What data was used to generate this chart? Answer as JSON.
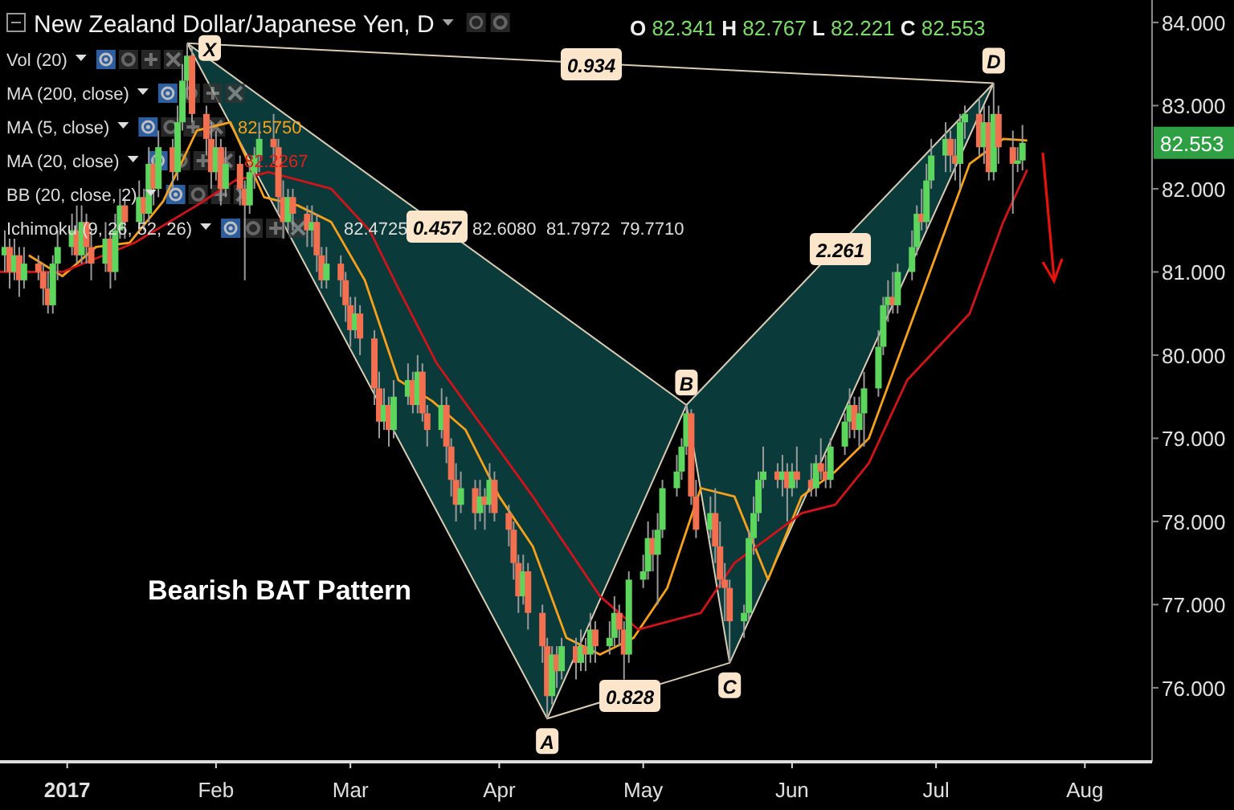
{
  "chart_data": {
    "type": "candlestick",
    "title": "New Zealand Dollar/Japanese Yen, D",
    "x": [
      "2016-12-19",
      "2016-12-20",
      "2016-12-21",
      "2016-12-22",
      "2016-12-23",
      "2016-12-26",
      "2016-12-27",
      "2016-12-28",
      "2016-12-29",
      "2016-12-30",
      "2017-01-02",
      "2017-01-03",
      "2017-01-04",
      "2017-01-05",
      "2017-01-06",
      "2017-01-09",
      "2017-01-10",
      "2017-01-11",
      "2017-01-12",
      "2017-01-13",
      "2017-01-16",
      "2017-01-17",
      "2017-01-18",
      "2017-01-19",
      "2017-01-20",
      "2017-01-23",
      "2017-01-24",
      "2017-01-25",
      "2017-01-26",
      "2017-01-27",
      "2017-01-30",
      "2017-01-31",
      "2017-02-01",
      "2017-02-02",
      "2017-02-03",
      "2017-02-06",
      "2017-02-07",
      "2017-02-08",
      "2017-02-09",
      "2017-02-10",
      "2017-02-13",
      "2017-02-14",
      "2017-02-15",
      "2017-02-16",
      "2017-02-17",
      "2017-02-20",
      "2017-02-21",
      "2017-02-22",
      "2017-02-23",
      "2017-02-24",
      "2017-02-27",
      "2017-02-28",
      "2017-03-01",
      "2017-03-02",
      "2017-03-03",
      "2017-03-06",
      "2017-03-07",
      "2017-03-08",
      "2017-03-09",
      "2017-03-10",
      "2017-03-13",
      "2017-03-14",
      "2017-03-15",
      "2017-03-16",
      "2017-03-17",
      "2017-03-20",
      "2017-03-21",
      "2017-03-22",
      "2017-03-23",
      "2017-03-24",
      "2017-03-27",
      "2017-03-28",
      "2017-03-29",
      "2017-03-30",
      "2017-03-31",
      "2017-04-03",
      "2017-04-04",
      "2017-04-05",
      "2017-04-06",
      "2017-04-07",
      "2017-04-10",
      "2017-04-11",
      "2017-04-12",
      "2017-04-13",
      "2017-04-14",
      "2017-04-17",
      "2017-04-18",
      "2017-04-19",
      "2017-04-20",
      "2017-04-21",
      "2017-04-24",
      "2017-04-25",
      "2017-04-26",
      "2017-04-27",
      "2017-04-28",
      "2017-05-01",
      "2017-05-02",
      "2017-05-03",
      "2017-05-04",
      "2017-05-05",
      "2017-05-08",
      "2017-05-09",
      "2017-05-10",
      "2017-05-11",
      "2017-05-12",
      "2017-05-15",
      "2017-05-16",
      "2017-05-17",
      "2017-05-18",
      "2017-05-19",
      "2017-05-22",
      "2017-05-23",
      "2017-05-24",
      "2017-05-25",
      "2017-05-26",
      "2017-05-29",
      "2017-05-30",
      "2017-05-31",
      "2017-06-01",
      "2017-06-02",
      "2017-06-05",
      "2017-06-06",
      "2017-06-07",
      "2017-06-08",
      "2017-06-09",
      "2017-06-12",
      "2017-06-13",
      "2017-06-14",
      "2017-06-15",
      "2017-06-16",
      "2017-06-19",
      "2017-06-20",
      "2017-06-21",
      "2017-06-22",
      "2017-06-23",
      "2017-06-26",
      "2017-06-27",
      "2017-06-28",
      "2017-06-29",
      "2017-06-30",
      "2017-07-03",
      "2017-07-04",
      "2017-07-05",
      "2017-07-06",
      "2017-07-07",
      "2017-07-10",
      "2017-07-11",
      "2017-07-12",
      "2017-07-13",
      "2017-07-14",
      "2017-07-17",
      "2017-07-18",
      "2017-07-19"
    ],
    "ohlc": [
      [
        81.2,
        81.5,
        81.0,
        81.3
      ],
      [
        81.3,
        81.4,
        80.8,
        81.0
      ],
      [
        81.0,
        81.4,
        80.9,
        81.2
      ],
      [
        81.2,
        81.3,
        80.7,
        80.9
      ],
      [
        80.9,
        81.3,
        80.8,
        81.1
      ],
      [
        81.1,
        81.2,
        80.9,
        81.0
      ],
      [
        81.0,
        81.1,
        80.6,
        80.8
      ],
      [
        80.8,
        81.0,
        80.5,
        80.6
      ],
      [
        80.6,
        81.2,
        80.5,
        81.1
      ],
      [
        81.1,
        81.5,
        80.9,
        81.3
      ],
      [
        81.3,
        81.7,
        81.2,
        81.5
      ],
      [
        81.5,
        81.8,
        81.1,
        81.2
      ],
      [
        81.2,
        81.8,
        81.1,
        81.6
      ],
      [
        81.6,
        81.7,
        81.1,
        81.3
      ],
      [
        81.3,
        81.5,
        80.9,
        81.1
      ],
      [
        81.1,
        81.6,
        81.0,
        81.4
      ],
      [
        81.4,
        81.5,
        80.8,
        81.0
      ],
      [
        81.0,
        81.7,
        80.9,
        81.5
      ],
      [
        81.5,
        82.0,
        81.4,
        81.8
      ],
      [
        81.8,
        81.9,
        81.4,
        81.6
      ],
      [
        81.6,
        82.1,
        81.5,
        81.9
      ],
      [
        81.9,
        82.0,
        81.5,
        81.7
      ],
      [
        81.7,
        82.5,
        81.6,
        82.3
      ],
      [
        82.3,
        82.4,
        81.8,
        82.0
      ],
      [
        82.0,
        82.7,
        81.9,
        82.5
      ],
      [
        82.5,
        82.6,
        82.0,
        82.2
      ],
      [
        82.2,
        83.0,
        82.1,
        82.8
      ],
      [
        82.8,
        83.5,
        82.7,
        83.3
      ],
      [
        83.3,
        83.75,
        83.1,
        83.6
      ],
      [
        83.6,
        83.7,
        82.8,
        82.9
      ],
      [
        82.9,
        83.0,
        82.4,
        82.6
      ],
      [
        82.6,
        82.8,
        82.0,
        82.2
      ],
      [
        82.2,
        82.7,
        82.1,
        82.5
      ],
      [
        82.5,
        82.6,
        81.8,
        82.0
      ],
      [
        82.0,
        82.5,
        81.9,
        82.3
      ],
      [
        82.3,
        82.4,
        81.8,
        82.0
      ],
      [
        82.0,
        82.1,
        80.9,
        81.8
      ],
      [
        81.8,
        82.3,
        81.7,
        82.2
      ],
      [
        82.2,
        82.5,
        82.0,
        82.4
      ],
      [
        82.4,
        82.8,
        82.2,
        82.6
      ],
      [
        82.6,
        82.9,
        82.3,
        82.5
      ],
      [
        82.5,
        82.6,
        81.7,
        81.9
      ],
      [
        81.9,
        82.1,
        81.4,
        81.6
      ],
      [
        81.6,
        82.0,
        81.5,
        81.9
      ],
      [
        81.9,
        82.0,
        81.5,
        81.7
      ],
      [
        81.7,
        81.8,
        81.3,
        81.5
      ],
      [
        81.5,
        81.8,
        81.3,
        81.6
      ],
      [
        81.6,
        81.7,
        81.0,
        81.2
      ],
      [
        81.2,
        81.3,
        80.8,
        80.9
      ],
      [
        80.9,
        81.3,
        80.8,
        81.1
      ],
      [
        81.1,
        81.2,
        80.7,
        80.9
      ],
      [
        80.9,
        81.0,
        80.4,
        80.6
      ],
      [
        80.6,
        80.7,
        80.1,
        80.3
      ],
      [
        80.3,
        80.7,
        80.2,
        80.5
      ],
      [
        80.5,
        80.6,
        80.0,
        80.2
      ],
      [
        80.2,
        80.3,
        79.4,
        79.6
      ],
      [
        79.6,
        79.8,
        79.0,
        79.2
      ],
      [
        79.2,
        79.6,
        79.1,
        79.4
      ],
      [
        79.4,
        79.5,
        78.9,
        79.1
      ],
      [
        79.1,
        79.7,
        79.0,
        79.5
      ],
      [
        79.5,
        79.9,
        79.4,
        79.7
      ],
      [
        79.7,
        79.8,
        79.3,
        79.4
      ],
      [
        79.4,
        80.0,
        79.3,
        79.8
      ],
      [
        79.8,
        79.9,
        79.2,
        79.3
      ],
      [
        79.3,
        79.4,
        78.9,
        79.1
      ],
      [
        79.1,
        79.6,
        79.0,
        79.4
      ],
      [
        79.4,
        79.5,
        78.7,
        78.9
      ],
      [
        78.9,
        79.0,
        78.3,
        78.5
      ],
      [
        78.5,
        78.7,
        78.0,
        78.2
      ],
      [
        78.2,
        78.6,
        78.1,
        78.4
      ],
      [
        78.4,
        78.5,
        77.9,
        78.1
      ],
      [
        78.1,
        78.5,
        78.0,
        78.3
      ],
      [
        78.3,
        78.4,
        77.9,
        78.2
      ],
      [
        78.2,
        78.7,
        78.1,
        78.5
      ],
      [
        78.5,
        78.6,
        78.0,
        78.1
      ],
      [
        78.1,
        78.2,
        77.7,
        77.9
      ],
      [
        77.9,
        78.0,
        77.3,
        77.5
      ],
      [
        77.5,
        77.6,
        76.9,
        77.1
      ],
      [
        77.1,
        77.6,
        77.0,
        77.4
      ],
      [
        77.4,
        77.5,
        76.7,
        76.9
      ],
      [
        76.9,
        77.0,
        76.3,
        76.5
      ],
      [
        76.5,
        76.6,
        75.63,
        75.9
      ],
      [
        75.9,
        76.5,
        75.8,
        76.4
      ],
      [
        76.4,
        76.5,
        76.0,
        76.2
      ],
      [
        76.2,
        76.6,
        76.1,
        76.5
      ],
      [
        76.5,
        76.6,
        76.1,
        76.3
      ],
      [
        76.3,
        76.7,
        76.2,
        76.5
      ],
      [
        76.5,
        76.6,
        76.2,
        76.4
      ],
      [
        76.4,
        76.9,
        76.3,
        76.7
      ],
      [
        76.7,
        76.8,
        76.3,
        76.5
      ],
      [
        76.5,
        76.8,
        76.4,
        76.6
      ],
      [
        76.6,
        77.1,
        76.5,
        76.9
      ],
      [
        76.9,
        77.0,
        76.5,
        76.7
      ],
      [
        76.7,
        76.8,
        76.1,
        76.4
      ],
      [
        76.4,
        77.4,
        76.3,
        77.3
      ],
      [
        77.3,
        77.6,
        77.2,
        77.4
      ],
      [
        77.4,
        78.0,
        77.3,
        77.8
      ],
      [
        77.8,
        77.9,
        77.4,
        77.6
      ],
      [
        77.6,
        78.1,
        77.0,
        77.9
      ],
      [
        77.9,
        78.5,
        77.8,
        78.4
      ],
      [
        78.4,
        78.8,
        78.3,
        78.6
      ],
      [
        78.6,
        79.0,
        78.5,
        78.9
      ],
      [
        78.9,
        79.4,
        78.8,
        79.3
      ],
      [
        79.3,
        79.35,
        78.2,
        78.3
      ],
      [
        78.3,
        78.5,
        77.8,
        77.9
      ],
      [
        77.9,
        78.3,
        77.8,
        78.1
      ],
      [
        78.1,
        78.4,
        77.5,
        77.7
      ],
      [
        77.7,
        78.0,
        77.2,
        77.3
      ],
      [
        77.3,
        77.5,
        76.8,
        77.2
      ],
      [
        77.2,
        77.3,
        76.3,
        76.8
      ],
      [
        76.8,
        77.0,
        76.6,
        76.9
      ],
      [
        76.9,
        77.9,
        76.8,
        77.8
      ],
      [
        77.8,
        78.3,
        77.6,
        78.1
      ],
      [
        78.1,
        78.6,
        78.0,
        78.5
      ],
      [
        78.5,
        78.9,
        78.4,
        78.6
      ],
      [
        78.6,
        78.7,
        78.4,
        78.5
      ],
      [
        78.5,
        78.8,
        78.3,
        78.6
      ],
      [
        78.6,
        78.7,
        78.0,
        78.4
      ],
      [
        78.4,
        78.7,
        78.3,
        78.6
      ],
      [
        78.6,
        78.9,
        78.4,
        78.5
      ],
      [
        78.5,
        78.7,
        78.3,
        78.4
      ],
      [
        78.4,
        78.8,
        78.3,
        78.7
      ],
      [
        78.7,
        79.0,
        78.5,
        78.6
      ],
      [
        78.6,
        78.8,
        78.4,
        78.5
      ],
      [
        78.5,
        79.0,
        78.4,
        78.9
      ],
      [
        78.9,
        79.3,
        78.8,
        79.2
      ],
      [
        79.2,
        79.6,
        79.0,
        79.4
      ],
      [
        79.4,
        79.5,
        79.0,
        79.1
      ],
      [
        79.1,
        79.5,
        78.9,
        79.3
      ],
      [
        79.3,
        79.8,
        78.9,
        79.6
      ],
      [
        79.6,
        80.3,
        79.5,
        80.1
      ],
      [
        80.1,
        80.7,
        80.0,
        80.6
      ],
      [
        80.6,
        80.9,
        80.4,
        80.7
      ],
      [
        80.7,
        81.0,
        80.5,
        80.6
      ],
      [
        80.6,
        81.1,
        80.5,
        81.0
      ],
      [
        81.0,
        81.5,
        80.9,
        81.3
      ],
      [
        81.3,
        81.8,
        81.2,
        81.7
      ],
      [
        81.7,
        82.0,
        81.5,
        81.6
      ],
      [
        81.6,
        82.3,
        81.5,
        82.1
      ],
      [
        82.1,
        82.6,
        82.0,
        82.4
      ],
      [
        82.4,
        82.8,
        82.2,
        82.6
      ],
      [
        82.6,
        82.7,
        82.2,
        82.4
      ],
      [
        82.4,
        82.6,
        82.1,
        82.3
      ],
      [
        82.3,
        82.9,
        82.0,
        82.8
      ],
      [
        82.8,
        83.0,
        82.6,
        82.9
      ],
      [
        82.9,
        83.1,
        82.4,
        82.5
      ],
      [
        82.5,
        83.0,
        82.3,
        82.8
      ],
      [
        82.8,
        83.0,
        82.1,
        82.2
      ],
      [
        82.2,
        83.27,
        82.1,
        82.9
      ],
      [
        82.9,
        83.0,
        82.3,
        82.5
      ],
      [
        82.5,
        82.7,
        81.7,
        82.3
      ],
      [
        82.3,
        82.5,
        82.2,
        82.341
      ],
      [
        82.341,
        82.767,
        82.221,
        82.553
      ]
    ],
    "series": [
      {
        "type": "line",
        "color": "#f5a11c",
        "x": [
          "2016-12-24",
          "2016-12-31",
          "2017-01-07",
          "2017-01-14",
          "2017-01-21",
          "2017-01-28",
          "2017-02-04",
          "2017-02-11",
          "2017-02-18",
          "2017-02-25",
          "2017-03-04",
          "2017-03-11",
          "2017-03-18",
          "2017-03-25",
          "2017-04-01",
          "2017-04-08",
          "2017-04-15",
          "2017-04-22",
          "2017-04-29",
          "2017-05-06",
          "2017-05-13",
          "2017-05-20",
          "2017-05-27",
          "2017-06-03",
          "2017-06-10",
          "2017-06-17",
          "2017-06-24",
          "2017-07-01",
          "2017-07-08",
          "2017-07-15",
          "2017-07-20"
        ],
        "values": [
          81.2,
          80.95,
          81.3,
          81.35,
          81.85,
          82.7,
          82.8,
          81.9,
          81.8,
          81.6,
          80.9,
          79.7,
          79.45,
          79.1,
          78.3,
          77.7,
          76.6,
          76.4,
          76.6,
          77.2,
          78.4,
          78.3,
          77.3,
          78.3,
          78.6,
          79.0,
          80.1,
          81.2,
          82.3,
          82.6,
          82.58
        ]
      },
      {
        "type": "line",
        "color": "#d0141a",
        "x": [
          "2016-12-18",
          "2016-12-31",
          "2017-01-15",
          "2017-01-28",
          "2017-02-05",
          "2017-02-12",
          "2017-02-25",
          "2017-03-05",
          "2017-03-11",
          "2017-03-19",
          "2017-04-08",
          "2017-04-22",
          "2017-04-30",
          "2017-05-13",
          "2017-05-20",
          "2017-06-03",
          "2017-06-10",
          "2017-06-17",
          "2017-06-25",
          "2017-07-08",
          "2017-07-15",
          "2017-07-20"
        ],
        "values": [
          81.0,
          81.0,
          81.35,
          81.8,
          82.1,
          82.2,
          82.0,
          81.5,
          80.8,
          79.9,
          78.3,
          77.1,
          76.7,
          76.9,
          77.5,
          78.1,
          78.2,
          78.7,
          79.7,
          80.5,
          81.6,
          82.23
        ]
      },
      {
        "type": "line",
        "color": "#d9ccb4",
        "x": [
          "2017-01-26",
          "2017-04-11",
          "2017-05-10",
          "2017-05-19",
          "2017-07-13"
        ],
        "values": [
          83.75,
          75.63,
          79.4,
          76.3,
          83.27
        ],
        "value_labels": [
          "X",
          "A",
          "B",
          "C",
          "D"
        ]
      }
    ],
    "xlim": [
      "2016-12-18",
      "2017-08-15"
    ],
    "xticks": [
      {
        "value": "2017-01-01",
        "label": "2017"
      },
      {
        "value": "2017-02-01",
        "label": "Feb"
      },
      {
        "value": "2017-03-01",
        "label": "Mar"
      },
      {
        "value": "2017-04-01",
        "label": "Apr"
      },
      {
        "value": "2017-05-01",
        "label": "May"
      },
      {
        "value": "2017-06-01",
        "label": "Jun"
      },
      {
        "value": "2017-07-01",
        "label": "Jul"
      },
      {
        "value": "2017-08-01",
        "label": "Aug"
      }
    ],
    "ylim": [
      75.11,
      84.27
    ],
    "yticks": [
      {
        "value": 76,
        "label": "76.000"
      },
      {
        "value": 77,
        "label": "77.000"
      },
      {
        "value": 78,
        "label": "78.000"
      },
      {
        "value": 79,
        "label": "79.000"
      },
      {
        "value": 80,
        "label": "80.000"
      },
      {
        "value": 81,
        "label": "81.000"
      },
      {
        "value": 82,
        "label": "82.000"
      },
      {
        "value": 83,
        "label": "83.000"
      },
      {
        "value": 84,
        "label": "84.000"
      }
    ],
    "annotations": [
      "Vol (20)",
      "MA (200, close)",
      "MA (5, close)",
      "82.5750",
      "MA (20, close)",
      "82.2267",
      "BB (20, close, 2)",
      "Ichimoku (9, 26, 52, 26)",
      "82.4725",
      "82.6080",
      "81.7972",
      "79.7710",
      "O 82.341 H 82.767 L 82.221 C 82.553",
      "Bearish BAT Pattern",
      "0.934",
      "0.457",
      "0.828",
      "2.261",
      "82.553"
    ]
  }
}
